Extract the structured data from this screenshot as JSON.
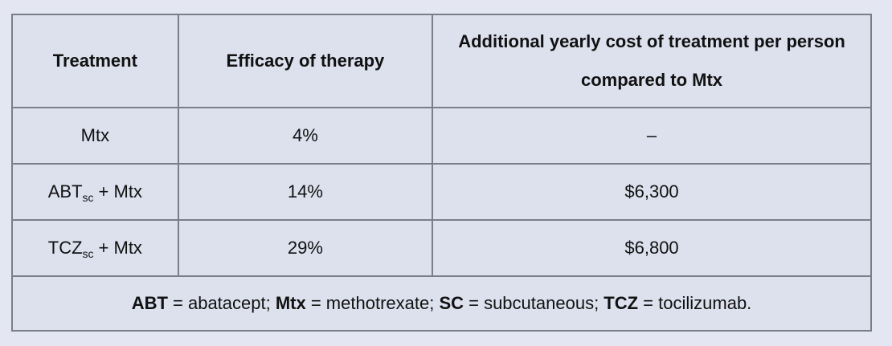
{
  "table": {
    "header": [
      "Treatment",
      "Efficacy of therapy",
      "Additional yearly cost of treatment per person compared to Mtx"
    ],
    "rows": [
      [
        "Mtx",
        "4%",
        "–"
      ],
      [
        {
          "name": "ABT",
          "subscript": "sc",
          "suffix": "+ Mtx"
        },
        "14%",
        "$6,300"
      ],
      [
        {
          "name": "TCZ",
          "subscript": "sc",
          "suffix": "+ Mtx"
        },
        "29%",
        "$6,800"
      ]
    ],
    "footnote": [
      {
        "text": "ABT",
        "bold": true
      },
      {
        "text": " = abatacept; ",
        "bold": false
      },
      {
        "text": "Mtx",
        "bold": true
      },
      {
        "text": " = methotrexate; ",
        "bold": false
      },
      {
        "text": "SC",
        "bold": true
      },
      {
        "text": " = subcutaneous; ",
        "bold": false
      },
      {
        "text": "TCZ",
        "bold": true
      },
      {
        "text": " = tocilizumab.",
        "bold": false
      }
    ]
  }
}
